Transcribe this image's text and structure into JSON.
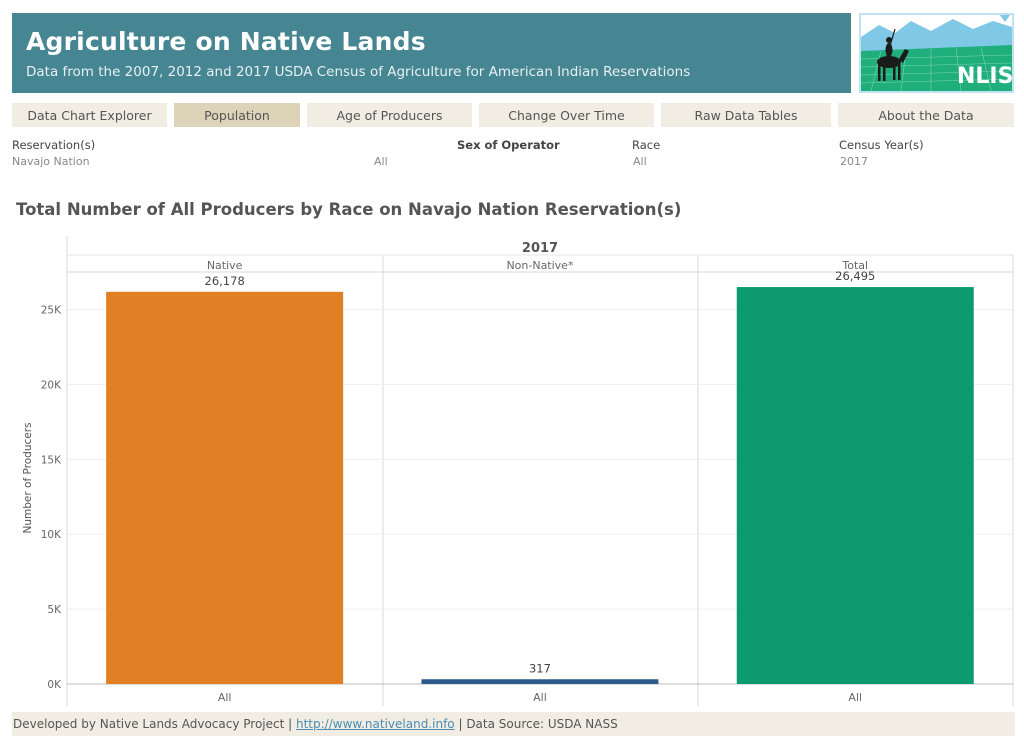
{
  "header": {
    "title": "Agriculture on Native Lands",
    "subtitle": "Data from the 2007, 2012 and 2017 USDA Census of Agriculture for American Indian Reservations"
  },
  "logo": {
    "text": "NLIS"
  },
  "nav": [
    {
      "label": "Data Chart Explorer",
      "active": false
    },
    {
      "label": "Population",
      "active": true
    },
    {
      "label": "Age of Producers",
      "active": false
    },
    {
      "label": "Change Over Time",
      "active": false
    },
    {
      "label": "Raw Data Tables",
      "active": false
    },
    {
      "label": "About the Data",
      "active": false
    }
  ],
  "filters": {
    "reservation": {
      "label": "Reservation(s)",
      "value": "Navajo Nation"
    },
    "sex": {
      "label": "Sex of Operator",
      "value": "All"
    },
    "race": {
      "label": "Race",
      "value": "All"
    },
    "census_year": {
      "label": "Census Year(s)",
      "value": "2017"
    }
  },
  "chart_title": "Total Number of All Producers by Race on Navajo Nation Reservation(s)",
  "chart_data": {
    "type": "bar",
    "title": "Total Number of All Producers by Race on Navajo Nation Reservation(s)",
    "column_header": "2017",
    "categories": [
      "Native",
      "Non-Native*",
      "Total"
    ],
    "x_labels": [
      "All",
      "All",
      "All"
    ],
    "values": [
      26178,
      317,
      26495
    ],
    "value_labels": [
      "26,178",
      "317",
      "26,495"
    ],
    "colors": [
      "#e07f23",
      "#2f5b8c",
      "#0d9a6f"
    ],
    "ylabel": "Number of Producers",
    "xlabel": "",
    "ylim": [
      0,
      27500
    ],
    "yticks": [
      0,
      5000,
      10000,
      15000,
      20000,
      25000
    ],
    "ytick_labels": [
      "0K",
      "5K",
      "10K",
      "15K",
      "20K",
      "25K"
    ],
    "grid": true
  },
  "footer": {
    "prefix": "Developed by Native Lands Advocacy Project | ",
    "link": "http://www.nativeland.info",
    "suffix": " | Data Source: USDA NASS"
  }
}
